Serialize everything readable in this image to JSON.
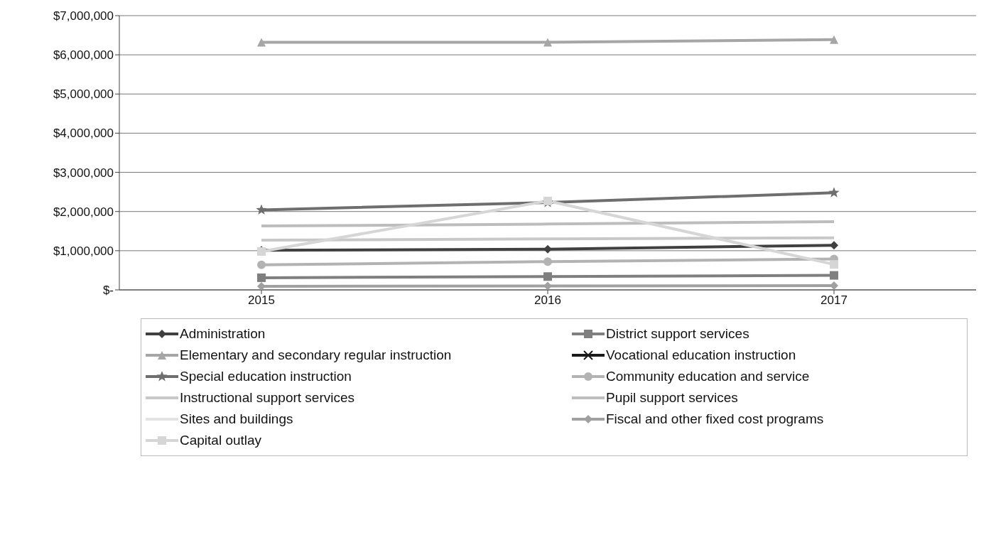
{
  "chart_data": {
    "type": "line",
    "categories": [
      "2015",
      "2016",
      "2017"
    ],
    "series": [
      {
        "name": "Administration",
        "color": "#404040",
        "marker": "diamond",
        "values": [
          1010000,
          1040000,
          1140000
        ]
      },
      {
        "name": "District support services",
        "color": "#7f7f7f",
        "marker": "square",
        "values": [
          310000,
          340000,
          370000
        ]
      },
      {
        "name": "Elementary and secondary regular instruction",
        "color": "#a6a6a6",
        "marker": "triangle",
        "values": [
          6320000,
          6320000,
          6390000
        ]
      },
      {
        "name": "Vocational education instruction",
        "color": "#1a1a1a",
        "marker": "cross",
        "values": [
          null,
          null,
          null
        ]
      },
      {
        "name": "Special education instruction",
        "color": "#6e6e6e",
        "marker": "star",
        "values": [
          2040000,
          2230000,
          2480000
        ]
      },
      {
        "name": "Community education and service",
        "color": "#b3b3b3",
        "marker": "circle",
        "values": [
          640000,
          720000,
          790000
        ]
      },
      {
        "name": "Instructional support services",
        "color": "#c8c8c8",
        "marker": "none",
        "values": [
          1270000,
          1300000,
          1330000
        ]
      },
      {
        "name": "Pupil support services",
        "color": "#bdbdbd",
        "marker": "none",
        "values": [
          1630000,
          1680000,
          1740000
        ]
      },
      {
        "name": "Sites and buildings",
        "color": "#e3e3e3",
        "marker": "none",
        "values": [
          null,
          null,
          null
        ]
      },
      {
        "name": "Fiscal and other fixed cost programs",
        "color": "#a0a0a0",
        "marker": "diamond",
        "values": [
          90000,
          100000,
          110000
        ]
      },
      {
        "name": "Capital outlay",
        "color": "#d6d6d6",
        "marker": "square",
        "values": [
          980000,
          2270000,
          650000
        ]
      }
    ],
    "ylim": [
      0,
      7000000
    ],
    "yticks": [
      {
        "value": 0,
        "label": "$-"
      },
      {
        "value": 1000000,
        "label": "$1,000,000"
      },
      {
        "value": 2000000,
        "label": "$2,000,000"
      },
      {
        "value": 3000000,
        "label": "$3,000,000"
      },
      {
        "value": 4000000,
        "label": "$4,000,000"
      },
      {
        "value": 5000000,
        "label": "$5,000,000"
      },
      {
        "value": 6000000,
        "label": "$6,000,000"
      },
      {
        "value": 7000000,
        "label": "$7,000,000"
      }
    ],
    "grid": "y",
    "legend": "bottom",
    "line_style": "solid"
  }
}
